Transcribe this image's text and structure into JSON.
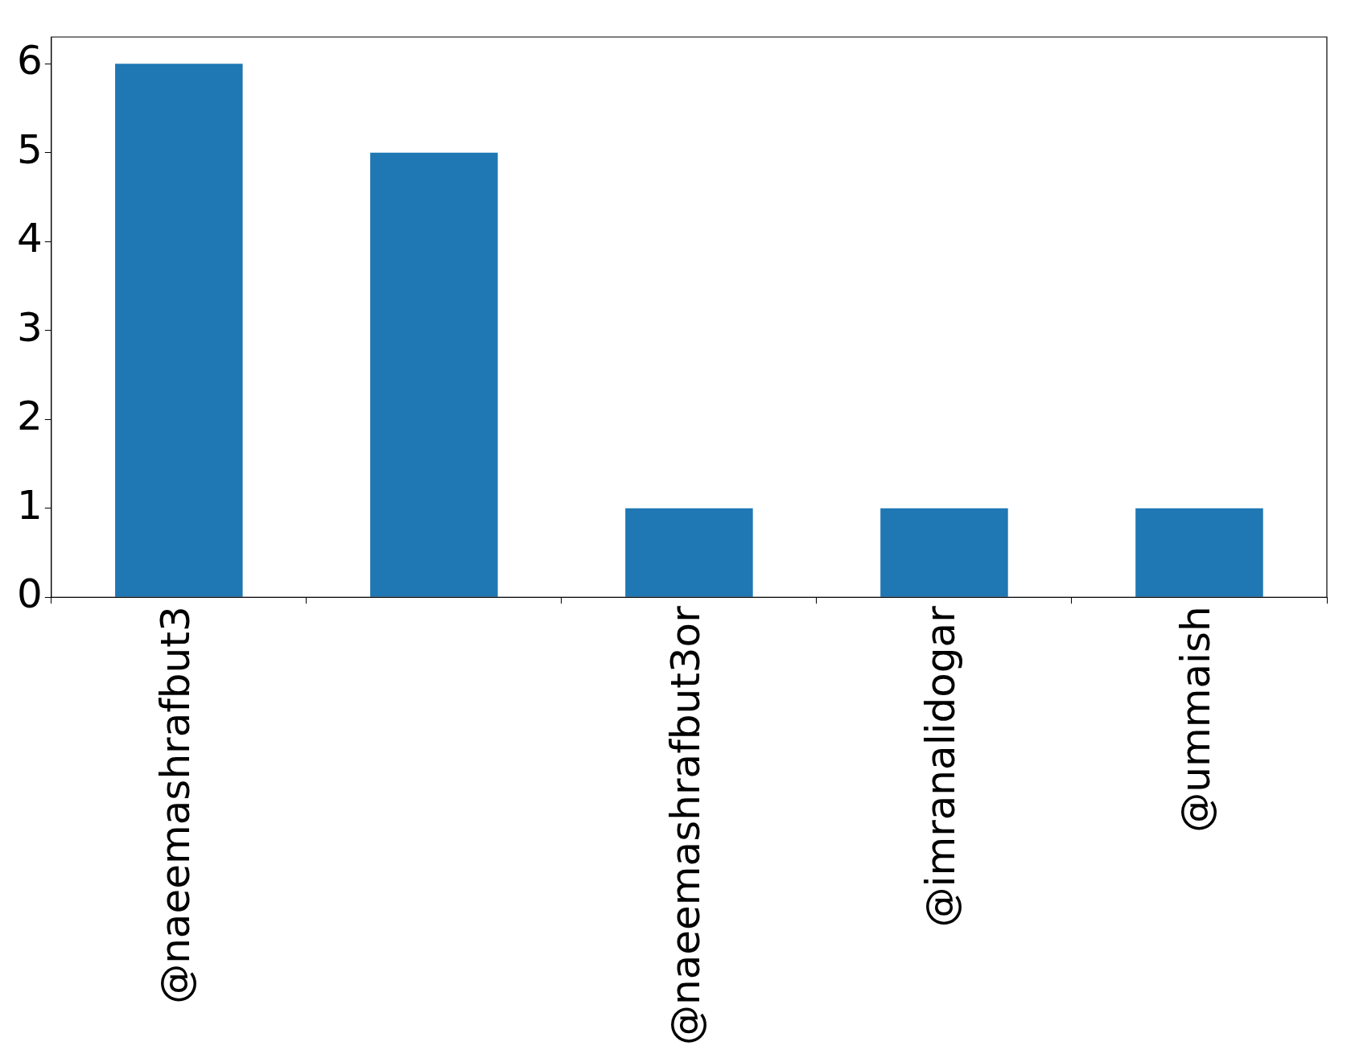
{
  "chart_data": {
    "type": "bar",
    "categories": [
      "@naeemashrafbut3",
      null,
      "@naeemashrafbut3or",
      "@imranalidogar",
      "@ummaish"
    ],
    "values": [
      6,
      5,
      1,
      1,
      1
    ],
    "color": "#1f77b4",
    "ylim": [
      0,
      6.3
    ],
    "yticks": [
      0,
      1,
      2,
      3,
      4,
      5,
      6
    ],
    "grid": false,
    "legend": false
  }
}
